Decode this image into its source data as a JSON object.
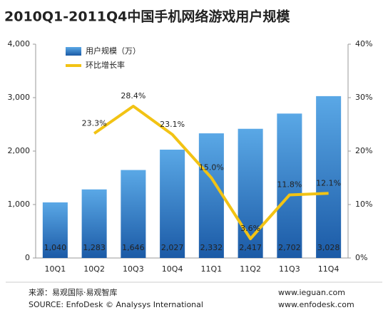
{
  "chart_data": {
    "type": "combo",
    "title": "2010Q1-2011Q4中国手机网络游戏用户规模",
    "categories": [
      "10Q1",
      "10Q2",
      "10Q3",
      "10Q4",
      "11Q1",
      "11Q2",
      "11Q3",
      "11Q4"
    ],
    "series": [
      {
        "name": "用户规模（万）",
        "type": "bar",
        "color": "#2f7bc8",
        "values": [
          1040,
          1283,
          1646,
          2027,
          2332,
          2417,
          2702,
          3028
        ],
        "value_labels": [
          "1,040",
          "1,283",
          "1,646",
          "2,027",
          "2,332",
          "2,417",
          "2,702",
          "3,028"
        ]
      },
      {
        "name": "环比增长率",
        "type": "line",
        "axis": "y2",
        "color": "#f2c314",
        "values": [
          null,
          23.3,
          28.4,
          23.1,
          15.0,
          3.6,
          11.8,
          12.1
        ],
        "value_labels": [
          null,
          "23.3%",
          "28.4%",
          "23.1%",
          "15.0%",
          "3.6%",
          "11.8%",
          "12.1%"
        ]
      }
    ],
    "ylim": [
      0,
      4000
    ],
    "yticks": [
      0,
      {
        "value": 1000,
        "label": "1,000"
      },
      {
        "value": 2000,
        "label": "2,000"
      },
      {
        "value": 3000,
        "label": "3,000"
      },
      {
        "value": 4000,
        "label": "4,000"
      }
    ],
    "y2lim": [
      0,
      40
    ],
    "y2ticks": [
      {
        "value": 0,
        "label": "0%"
      },
      {
        "value": 10,
        "label": "10%"
      },
      {
        "value": 20,
        "label": "20%"
      },
      {
        "value": 30,
        "label": "30%"
      },
      {
        "value": 40,
        "label": "40%"
      }
    ],
    "grid": false,
    "legend": "top-left",
    "source": [
      "来源：易观国际·易观智库",
      "SOURCE: EnfoDesk © Analysys International"
    ],
    "links": [
      "www.ieguan.com",
      "www.enfodesk.com"
    ]
  }
}
